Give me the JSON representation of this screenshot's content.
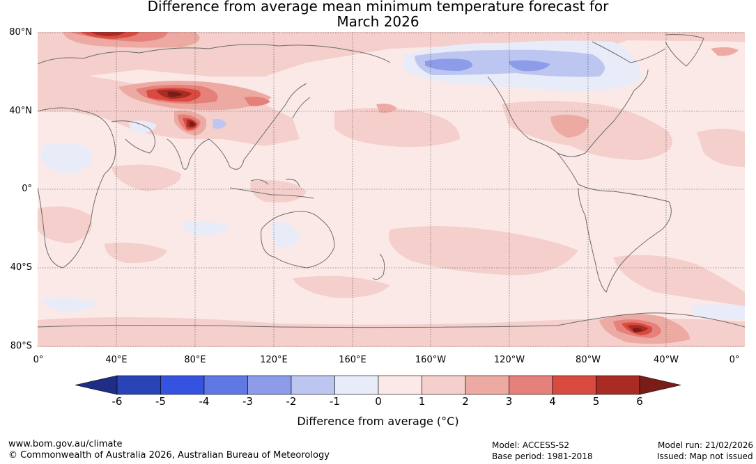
{
  "title_line1": "Difference from average mean minimum temperature forecast for",
  "title_line2": "March 2026",
  "latitude_labels": [
    "80°N",
    "40°N",
    "0°",
    "40°S",
    "80°S"
  ],
  "longitude_labels": [
    "0°",
    "40°E",
    "80°E",
    "120°E",
    "160°E",
    "160°W",
    "120°W",
    "80°W",
    "40°W",
    "0°"
  ],
  "colorbar": {
    "title": "Difference from average (°C)",
    "tick_labels": [
      "-6",
      "-5",
      "-4",
      "-3",
      "-2",
      "-1",
      "0",
      "1",
      "2",
      "3",
      "4",
      "5",
      "6"
    ],
    "colors": [
      "#1f2d86",
      "#2a44b8",
      "#3553e0",
      "#5f78e4",
      "#8c9ce9",
      "#bdc6f1",
      "#e8ebf8",
      "#fbe9e8",
      "#f4cfcb",
      "#ecaaa3",
      "#e5807a",
      "#d94a3f",
      "#a82b24",
      "#7a1c17"
    ]
  },
  "footer": {
    "website": "www.bom.gov.au/climate",
    "copyright": "© Commonwealth of Australia 2026, Australian Bureau of Meteorology",
    "model": "Model: ACCESS-S2",
    "base_period": "Base period: 1981-2018",
    "model_run": "Model run: 21/02/2026",
    "issued": "Issued: Map not issued"
  }
}
